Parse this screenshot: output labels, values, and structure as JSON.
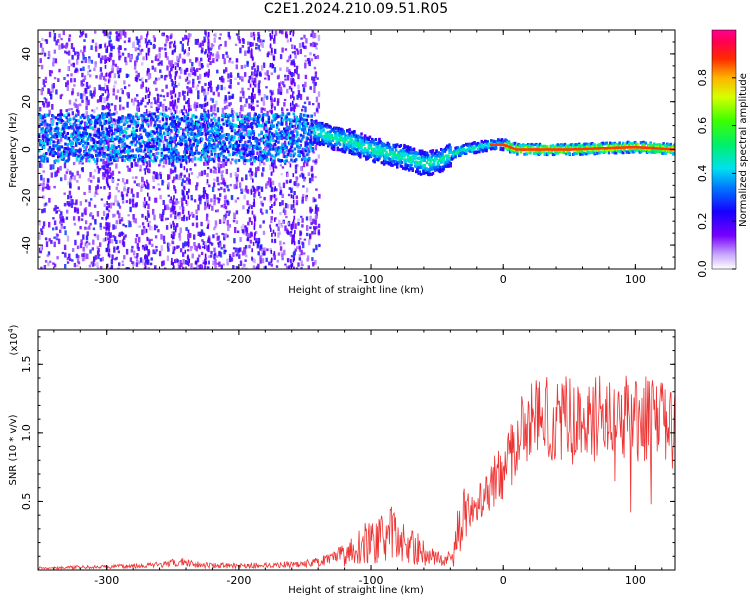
{
  "title": "C2E1.2024.210.09.51.R05",
  "chart_data": [
    {
      "type": "heatmap",
      "xlabel": "Height of straight line (km)",
      "ylabel": "Frequency (Hz)",
      "xlim": [
        -352,
        130
      ],
      "ylim": [
        -50,
        50
      ],
      "xticks": [
        -300,
        -200,
        -100,
        0,
        100
      ],
      "xtick_labels": [
        "-300",
        "-200",
        "-100",
        "0",
        "100"
      ],
      "yticks": [
        -40,
        -20,
        0,
        20,
        40
      ],
      "ytick_labels": [
        "-40",
        "-20",
        "0",
        "20",
        "40"
      ],
      "colorbar": {
        "label": "Normalized spectral amplitude",
        "range": [
          0,
          1
        ],
        "ticks": [
          0.0,
          0.2,
          0.4,
          0.6,
          0.8
        ],
        "tick_labels": [
          "0.0",
          "0.2",
          "0.4",
          "0.6",
          "0.8"
        ],
        "colormap": "hsv-like (white, violet, blue, cyan, green, yellow, red, magenta)"
      },
      "ridge_frequency": {
        "x": [
          -145,
          -130,
          -115,
          -100,
          -85,
          -70,
          -60,
          -50,
          -40,
          -30,
          -20,
          -10,
          0,
          10,
          50,
          100,
          130
        ],
        "y": [
          8,
          5,
          3,
          0,
          -2,
          -4,
          -6,
          -5,
          -2,
          0,
          1,
          2,
          2,
          0,
          0,
          1,
          0
        ]
      }
    },
    {
      "type": "line",
      "xlabel": "Height of straight line (km)",
      "ylabel": "SNR (10 * v/v)",
      "y_multiplier": "(x10",
      "y_multiplier_exp": "4",
      "y_multiplier_close": ")",
      "xlim": [
        -352,
        130
      ],
      "ylim": [
        0,
        1.75
      ],
      "xticks": [
        -300,
        -200,
        -100,
        0,
        100
      ],
      "xtick_labels": [
        "-300",
        "-200",
        "-100",
        "0",
        "100"
      ],
      "yticks": [
        0.5,
        1.0,
        1.5
      ],
      "ytick_labels": [
        "0.5",
        "1.0",
        "1.5"
      ],
      "series_color": "#ee3333",
      "envelope": {
        "x": [
          -352,
          -300,
          -260,
          -240,
          -230,
          -200,
          -170,
          -150,
          -130,
          -115,
          -105,
          -95,
          -85,
          -75,
          -65,
          -55,
          -45,
          -38,
          -34,
          -30,
          -25,
          -15,
          -5,
          0,
          5,
          12,
          20,
          30,
          45,
          60,
          80,
          100,
          115,
          130
        ],
        "y": [
          0.02,
          0.03,
          0.05,
          0.08,
          0.05,
          0.04,
          0.05,
          0.06,
          0.1,
          0.2,
          0.28,
          0.3,
          0.38,
          0.28,
          0.22,
          0.14,
          0.1,
          0.12,
          0.4,
          0.48,
          0.52,
          0.65,
          0.78,
          0.85,
          0.95,
          1.15,
          1.25,
          1.3,
          1.28,
          1.25,
          1.3,
          1.3,
          1.25,
          1.2
        ]
      }
    }
  ]
}
